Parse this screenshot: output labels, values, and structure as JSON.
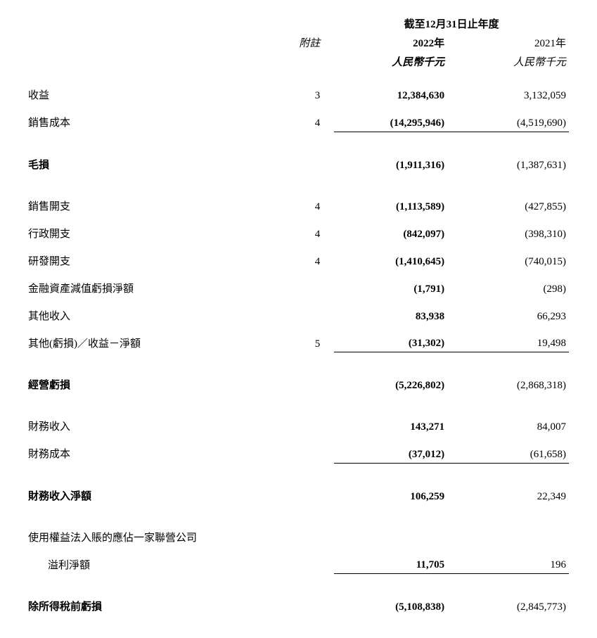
{
  "header": {
    "period_title": "截至12月31日止年度",
    "note_label": "附註",
    "year_current": "2022年",
    "year_prior": "2021年",
    "unit_current": "人民幣千元",
    "unit_prior": "人民幣千元"
  },
  "rows": [
    {
      "label": "收益",
      "note": "3",
      "cur": "12,384,630",
      "prev": "3,132,059",
      "bold": false,
      "underline": false,
      "indent": false
    },
    {
      "label": "銷售成本",
      "note": "4",
      "cur": "(14,295,946)",
      "prev": "(4,519,690)",
      "bold": false,
      "underline": true,
      "indent": false
    },
    {
      "type": "spacer"
    },
    {
      "label": "毛損",
      "note": "",
      "cur": "(1,911,316)",
      "prev": "(1,387,631)",
      "bold": true,
      "underline": false,
      "indent": false
    },
    {
      "type": "spacer"
    },
    {
      "label": "銷售開支",
      "note": "4",
      "cur": "(1,113,589)",
      "prev": "(427,855)",
      "bold": false,
      "underline": false,
      "indent": false
    },
    {
      "label": "行政開支",
      "note": "4",
      "cur": "(842,097)",
      "prev": "(398,310)",
      "bold": false,
      "underline": false,
      "indent": false
    },
    {
      "label": "研發開支",
      "note": "4",
      "cur": "(1,410,645)",
      "prev": "(740,015)",
      "bold": false,
      "underline": false,
      "indent": false
    },
    {
      "label": "金融資產減值虧損淨額",
      "note": "",
      "cur": "(1,791)",
      "prev": "(298)",
      "bold": false,
      "underline": false,
      "indent": false
    },
    {
      "label": "其他收入",
      "note": "",
      "cur": "83,938",
      "prev": "66,293",
      "bold": false,
      "underline": false,
      "indent": false
    },
    {
      "label": "其他(虧損)／收益－淨額",
      "note": "5",
      "cur": "(31,302)",
      "prev": "19,498",
      "bold": false,
      "underline": true,
      "indent": false
    },
    {
      "type": "spacer"
    },
    {
      "label": "經營虧損",
      "note": "",
      "cur": "(5,226,802)",
      "prev": "(2,868,318)",
      "bold": true,
      "underline": false,
      "indent": false
    },
    {
      "type": "spacer"
    },
    {
      "label": "財務收入",
      "note": "",
      "cur": "143,271",
      "prev": "84,007",
      "bold": false,
      "underline": false,
      "indent": false
    },
    {
      "label": "財務成本",
      "note": "",
      "cur": "(37,012)",
      "prev": "(61,658)",
      "bold": false,
      "underline": true,
      "indent": false
    },
    {
      "type": "spacer"
    },
    {
      "label": "財務收入淨額",
      "note": "",
      "cur": "106,259",
      "prev": "22,349",
      "bold": true,
      "underline": false,
      "indent": false
    },
    {
      "type": "spacer"
    },
    {
      "label": "使用權益法入賬的應佔一家聯營公司",
      "note": "",
      "cur": "",
      "prev": "",
      "bold": false,
      "underline": false,
      "indent": false
    },
    {
      "label": "溢利淨額",
      "note": "",
      "cur": "11,705",
      "prev": "196",
      "bold": false,
      "underline": true,
      "indent": true
    },
    {
      "type": "spacer"
    },
    {
      "label": "除所得稅前虧損",
      "note": "",
      "cur": "(5,108,838)",
      "prev": "(2,845,773)",
      "bold": true,
      "underline": false,
      "indent": false
    }
  ]
}
